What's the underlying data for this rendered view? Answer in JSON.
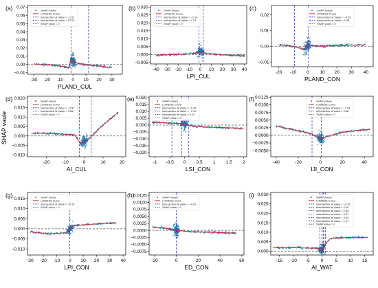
{
  "figure": {
    "ylabel": "SHAP vaule"
  },
  "colors": {
    "points": "#1f77b4",
    "lowess": "#d62728",
    "intersect": "#1f1fbf",
    "zero": "#555555"
  },
  "chart_data": [
    {
      "type": "scatter",
      "letter": "(a)",
      "xlabel": "PLAND_CUL",
      "xlim": [
        -35,
        38
      ],
      "ylim": [
        -0.012,
        0.072
      ],
      "xticks": [
        -30,
        -20,
        -10,
        0,
        10,
        20,
        30
      ],
      "yticks": [
        -0.01,
        0.0,
        0.01,
        0.02,
        0.03,
        0.04,
        0.05,
        0.06,
        0.07
      ],
      "ytick_labels": [
        "−0.01",
        "0.00",
        "0.01",
        "0.02",
        "0.03",
        "0.04",
        "0.05",
        "0.06",
        "0.07"
      ],
      "lowess": [
        [
          -30,
          0.0005
        ],
        [
          -20,
          -0.0005
        ],
        [
          -10,
          -0.002
        ],
        [
          -3,
          -0.004
        ],
        [
          -1.5,
          0.006
        ],
        [
          0,
          0.004
        ],
        [
          2,
          0.002
        ],
        [
          10,
          -0.0005
        ],
        [
          20,
          -0.002
        ],
        [
          30,
          -0.004
        ]
      ],
      "lowess_x_range": [
        -30,
        30
      ],
      "intersections": [
        -1.51,
        12.02
      ],
      "legend": [
        "SHAP values",
        "LOWESS Curve",
        "Intersection at Value = −1.51",
        "Intersection at Value = 12.02",
        "SHAP value = 0"
      ]
    },
    {
      "type": "scatter",
      "letter": "(b)",
      "xlabel": "LPI_CUL",
      "xlim": [
        -45,
        42
      ],
      "ylim": [
        -0.006,
        0.031
      ],
      "xticks": [
        -40,
        -30,
        -20,
        -10,
        0,
        10,
        20,
        30,
        40
      ],
      "yticks": [
        -0.005,
        0.0,
        0.005,
        0.01,
        0.015,
        0.02,
        0.025,
        0.03
      ],
      "ytick_labels": [
        "−0.005",
        "0.000",
        "0.005",
        "0.010",
        "0.015",
        "0.020",
        "0.025",
        "0.030"
      ],
      "lowess": [
        [
          -40,
          -0.0005
        ],
        [
          -20,
          0.0
        ],
        [
          -5,
          0.0008
        ],
        [
          0,
          0.002
        ],
        [
          5,
          0.0006
        ],
        [
          20,
          -0.0003
        ],
        [
          40,
          -0.001
        ]
      ],
      "lowess_x_range": [
        -40,
        40
      ],
      "intersections": [
        -1.24,
        2.73
      ],
      "legend": [
        "SHAP values",
        "LOWESS Curve",
        "Intersection at Value = −1.24",
        "Intersection at Value = 2.73",
        "SHAP value = 0"
      ]
    },
    {
      "type": "scatter",
      "letter": "(c)",
      "xlabel": "PLAND_CON",
      "xlim": [
        -25,
        45
      ],
      "ylim": [
        -0.013,
        0.026
      ],
      "xticks": [
        -20,
        -10,
        0,
        10,
        20,
        30,
        40
      ],
      "yticks": [
        -0.01,
        0.0,
        0.01,
        0.02
      ],
      "ytick_labels": [
        "−0.01",
        "0.00",
        "0.01",
        "0.02"
      ],
      "lowess": [
        [
          -20,
          0.001
        ],
        [
          -10,
          0.0
        ],
        [
          -2,
          -0.002
        ],
        [
          0,
          0.001
        ],
        [
          2,
          0.0005
        ],
        [
          10,
          0.0
        ],
        [
          20,
          0.0005
        ],
        [
          40,
          0.001
        ]
      ],
      "lowess_x_range": [
        -20,
        40
      ],
      "intersections": [
        -9.2,
        0.44
      ],
      "legend": [
        "SHAP values",
        "LOWESS Curve",
        "Intersection at Value = −9.20",
        "Intersection at Value = 0.44",
        "SHAP value = 0"
      ]
    },
    {
      "type": "scatter",
      "letter": "(d)",
      "xlabel": "AI_CUL",
      "xlim": [
        -30,
        22
      ],
      "ylim": [
        -0.011,
        0.021
      ],
      "xticks": [
        -20,
        -10,
        0,
        10,
        20
      ],
      "yticks": [
        -0.01,
        -0.005,
        0.0,
        0.005,
        0.01,
        0.015,
        0.02
      ],
      "ytick_labels": [
        "−0.010",
        "−0.005",
        "0.000",
        "0.005",
        "0.010",
        "0.015",
        "0.020"
      ],
      "lowess": [
        [
          -28,
          0.0015
        ],
        [
          -15,
          0.0012
        ],
        [
          -5,
          0.0005
        ],
        [
          -2,
          -0.004
        ],
        [
          2,
          -0.002
        ],
        [
          8,
          0.004
        ],
        [
          18,
          0.0125
        ]
      ],
      "lowess_x_range": [
        -28,
        18
      ],
      "intersections": [
        -2.57,
        3.63
      ],
      "legend": [
        "SHAP values",
        "LOWESS Curve",
        "Intersection at Value = −2.57",
        "Intersection at Value = 3.63",
        "SHAP value = 0"
      ]
    },
    {
      "type": "scatter",
      "letter": "(e)",
      "xlabel": "LSI_CON",
      "xlim": [
        -1.2,
        2.1
      ],
      "ylim": [
        -0.023,
        0.021
      ],
      "xticks": [
        -1.0,
        -0.5,
        0.0,
        0.5,
        1.0,
        1.5,
        2.0
      ],
      "yticks": [
        -0.02,
        -0.015,
        -0.01,
        -0.005,
        0.0,
        0.005,
        0.01,
        0.015,
        0.02
      ],
      "ytick_labels": [
        "−0.020",
        "−0.015",
        "−0.010",
        "−0.005",
        "0.000",
        "0.005",
        "0.010",
        "0.015",
        "0.020"
      ],
      "lowess": [
        [
          -1.1,
          0.002
        ],
        [
          -0.5,
          0.0015
        ],
        [
          0.0,
          0.0008
        ],
        [
          0.3,
          -0.001
        ],
        [
          0.8,
          -0.0015
        ],
        [
          1.5,
          -0.002
        ],
        [
          2.0,
          -0.0025
        ]
      ],
      "lowess_x_range": [
        -1.1,
        2.0
      ],
      "intersections": [
        -0.43,
        -0.1,
        0.13
      ],
      "legend": [
        "SHAP values",
        "LOWESS Curve",
        "Intersection at Value = −0.43",
        "Intersection at Value = −0.10",
        "Intersection at Value = 0.13",
        "SHAP value = 0"
      ]
    },
    {
      "type": "scatter",
      "letter": "(f)",
      "xlabel": "IJI_CON",
      "xlim": [
        -45,
        48
      ],
      "ylim": [
        -0.007,
        0.0128
      ],
      "xticks": [
        -40,
        -20,
        0,
        20,
        40
      ],
      "yticks": [
        -0.005,
        -0.0025,
        0.0,
        0.0025,
        0.005,
        0.0075,
        0.01,
        0.0125
      ],
      "ytick_labels": [
        "−0.0050",
        "−0.0025",
        "0.0000",
        "0.0025",
        "0.0050",
        "0.0075",
        "0.0100",
        "0.0125"
      ],
      "lowess": [
        [
          -40,
          0.003
        ],
        [
          -20,
          0.0015
        ],
        [
          -8,
          0.0005
        ],
        [
          0,
          -0.0012
        ],
        [
          5,
          -0.0005
        ],
        [
          20,
          0.001
        ],
        [
          45,
          0.002
        ]
      ],
      "lowess_x_range": [
        -40,
        45
      ],
      "intersections": [
        -7.54,
        0.88
      ],
      "legend": [
        "SHAP values",
        "LOWESS Curve",
        "Intersection at Value = −7.54",
        "Intersection at Value = 0.88",
        "SHAP value = 0"
      ]
    },
    {
      "type": "scatter",
      "letter": "(g)",
      "xlabel": "LPI_CON",
      "xlim": [
        -32,
        42
      ],
      "ylim": [
        -0.013,
        0.018
      ],
      "xticks": [
        -30,
        -20,
        -10,
        0,
        10,
        20,
        30,
        40
      ],
      "yticks": [
        -0.01,
        -0.005,
        0.0,
        0.005,
        0.01,
        0.015
      ],
      "ytick_labels": [
        "−0.010",
        "−0.005",
        "0.000",
        "0.005",
        "0.010",
        "0.015"
      ],
      "lowess": [
        [
          -30,
          -0.0015
        ],
        [
          -15,
          -0.0025
        ],
        [
          -3,
          -0.002
        ],
        [
          0,
          0.0
        ],
        [
          3,
          0.0015
        ],
        [
          15,
          0.0022
        ],
        [
          35,
          0.003
        ]
      ],
      "lowess_x_range": [
        -30,
        35
      ],
      "intersections": [
        -0.15
      ],
      "legend": [
        "SHAP values",
        "LOWESS Curve",
        "Intersection at Value = −0.15",
        "SHAP value = 0"
      ]
    },
    {
      "type": "scatter",
      "letter": "(h)",
      "xlabel": "ED_CON",
      "xlim": [
        -25,
        62
      ],
      "ylim": [
        -0.0088,
        0.0135
      ],
      "xticks": [
        -20,
        0,
        20,
        40,
        60
      ],
      "yticks": [
        -0.0075,
        -0.005,
        -0.0025,
        0.0,
        0.0025,
        0.005,
        0.0075,
        0.01,
        0.0125
      ],
      "ytick_labels": [
        "−0.0075",
        "−0.0050",
        "−0.0025",
        "0.0000",
        "0.0025",
        "0.0050",
        "0.0075",
        "0.0100",
        "0.0125"
      ],
      "lowess": [
        [
          -22,
          0.0012
        ],
        [
          -10,
          0.0008
        ],
        [
          0,
          0.0
        ],
        [
          10,
          -0.0004
        ],
        [
          30,
          -0.0007
        ],
        [
          55,
          -0.001
        ]
      ],
      "lowess_x_range": [
        -22,
        55
      ],
      "intersections": [
        -0.01
      ],
      "legend": [
        "SHAP values",
        "LOWESS Curve",
        "Intersection at Value = −0.01",
        "SHAP value = 0"
      ]
    },
    {
      "type": "scatter",
      "letter": "(i)",
      "xlabel": "AI_WAT",
      "xlim": [
        -18,
        18
      ],
      "ylim": [
        -0.002,
        0.031
      ],
      "xticks": [
        -15,
        -10,
        -5,
        0,
        5,
        10,
        15
      ],
      "yticks": [
        0.0,
        0.005,
        0.01,
        0.015,
        0.02,
        0.025,
        0.03
      ],
      "ytick_labels": [
        "0.000",
        "0.005",
        "0.010",
        "0.015",
        "0.020",
        "0.025",
        "0.030"
      ],
      "lowess": [
        [
          -17,
          0.0018
        ],
        [
          -8,
          0.0018
        ],
        [
          -2,
          0.0015
        ],
        [
          0,
          0.0005
        ],
        [
          1.5,
          0.0045
        ],
        [
          3,
          0.0068
        ],
        [
          8,
          0.0072
        ],
        [
          16,
          0.0072
        ]
      ],
      "lowess_x_range": [
        -17,
        16
      ],
      "intersections": [
        -0.76,
        0.05,
        0.65,
        0.07,
        0.54,
        1.17
      ],
      "legend": [
        "SHAP values",
        "LOWESS Curve",
        "Intersection at Value = −0.76",
        "Intersection at Value = 0.05",
        "Intersection at Value = 0.65",
        "Intersection at Value = 0.07",
        "Intersection at Value = 0.54",
        "Intersection at Value = 1.17",
        "SHAP value = 0"
      ]
    }
  ]
}
